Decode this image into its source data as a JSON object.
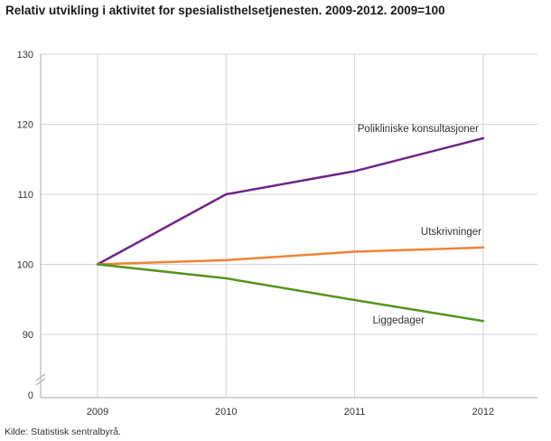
{
  "title": "Relativ utvikling i aktivitet for spesialisthelsetjenesten. 2009-2012. 2009=100",
  "source": "Kilde: Statistisk sentralbyrå.",
  "chart_data": {
    "type": "line",
    "x": [
      2009,
      2010,
      2011,
      2012
    ],
    "series": [
      {
        "name": "Polikliniske konsultasjoner",
        "values": [
          100,
          110,
          113.3,
          118
        ],
        "color": "#6f2586"
      },
      {
        "name": "Utskrivninger",
        "values": [
          100,
          100.6,
          101.8,
          102.4
        ],
        "color": "#ef8434"
      },
      {
        "name": "Liggedager",
        "values": [
          100,
          98,
          94.9,
          91.9
        ],
        "color": "#55941e"
      }
    ],
    "yticks": [
      90,
      100,
      110,
      120,
      130
    ],
    "y_zero_label": "0",
    "ylim": [
      90,
      130
    ],
    "axis_break": true,
    "grid": true,
    "legend": "inline labels next to lines",
    "xlabel": "",
    "ylabel": ""
  }
}
